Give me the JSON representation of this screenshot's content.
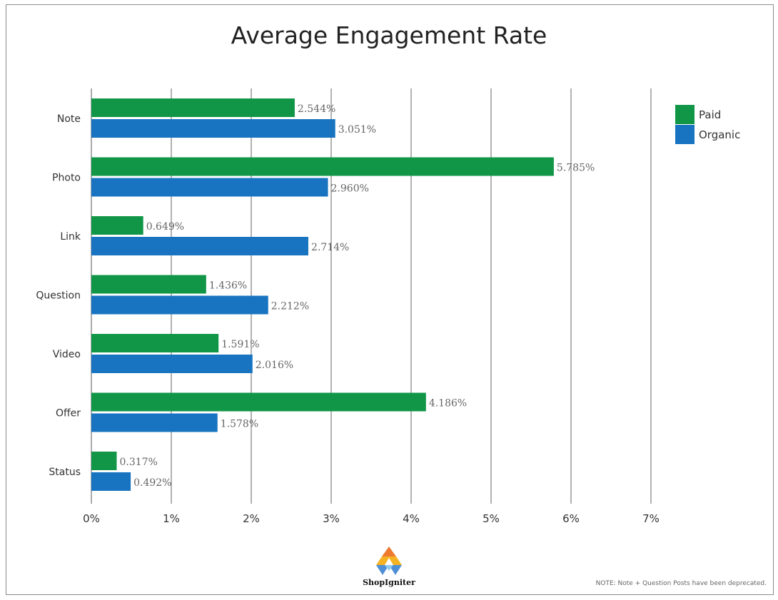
{
  "chart_data": {
    "type": "bar",
    "orientation": "horizontal",
    "title": "Average Engagement Rate",
    "categories": [
      "Note",
      "Photo",
      "Link",
      "Question",
      "Video",
      "Offer",
      "Status"
    ],
    "series": [
      {
        "name": "Paid",
        "color": "#119647",
        "values": [
          2.544,
          5.785,
          0.649,
          1.436,
          1.591,
          4.186,
          0.317
        ],
        "labels": [
          "2.544%",
          "5.785%",
          "0.649%",
          "1.436%",
          "1.591%",
          "4.186%",
          "0.317%"
        ]
      },
      {
        "name": "Organic",
        "color": "#1874c0",
        "values": [
          3.051,
          2.96,
          2.714,
          2.212,
          2.016,
          1.578,
          0.492
        ],
        "labels": [
          "3.051%",
          "2.960%",
          "2.714%",
          "2.212%",
          "2.016%",
          "1.578%",
          "0.492%"
        ]
      }
    ],
    "xlim": [
      0,
      7
    ],
    "xticks": [
      "0%",
      "1%",
      "2%",
      "3%",
      "4%",
      "5%",
      "6%",
      "7%"
    ],
    "grid": "vertical",
    "legend_position": "right"
  },
  "footer": {
    "logo": "ShopIgniter",
    "note": "NOTE: Note + Question Posts have been deprecated."
  }
}
